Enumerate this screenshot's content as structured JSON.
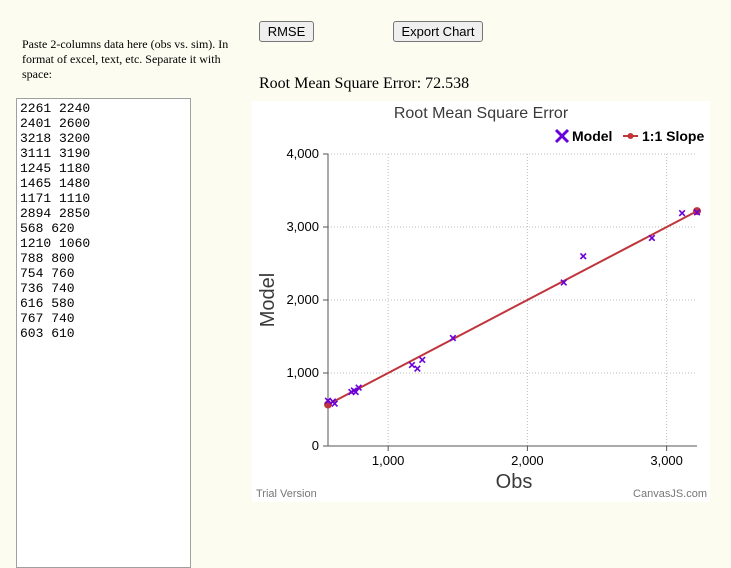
{
  "instructions": "Paste 2-columns data here (obs vs. sim). In format of excel, text, etc. Separate it with space:",
  "data_text": "2261 2240\n2401 2600\n3218 3200\n3111 3190\n1245 1180\n1465 1480\n1171 1110\n2894 2850\n568 620\n1210 1060\n788 800\n754 760\n736 740\n616 580\n767 740\n603 610",
  "buttons": {
    "rmse": "RMSE",
    "export": "Export Chart"
  },
  "result_text": "Root Mean Square Error: 72.538",
  "chart_data": {
    "type": "scatter",
    "title": "Root Mean Square Error",
    "xlabel": "Obs",
    "ylabel": "Model",
    "xlim": [
      568,
      3218
    ],
    "ylim": [
      0,
      4000
    ],
    "x_ticks": [
      1000,
      2000,
      3000
    ],
    "x_tick_labels": [
      "1,000",
      "2,000",
      "3,000"
    ],
    "y_ticks": [
      0,
      1000,
      2000,
      3000,
      4000
    ],
    "y_tick_labels": [
      "0",
      "1,000",
      "2,000",
      "3,000",
      "4,000"
    ],
    "grid": true,
    "legend_position": "top-right",
    "series": [
      {
        "name": "Model",
        "type": "scatter",
        "color": "#6a00d9",
        "marker": "cross",
        "points": [
          [
            2261,
            2240
          ],
          [
            2401,
            2600
          ],
          [
            3218,
            3200
          ],
          [
            3111,
            3190
          ],
          [
            1245,
            1180
          ],
          [
            1465,
            1480
          ],
          [
            1171,
            1110
          ],
          [
            2894,
            2850
          ],
          [
            568,
            620
          ],
          [
            1210,
            1060
          ],
          [
            788,
            800
          ],
          [
            754,
            760
          ],
          [
            736,
            740
          ],
          [
            616,
            580
          ],
          [
            767,
            740
          ],
          [
            603,
            610
          ]
        ]
      },
      {
        "name": "1:1 Slope",
        "type": "line",
        "color": "#c0353b",
        "marker": "circle",
        "points": [
          [
            568,
            568
          ],
          [
            3218,
            3218
          ]
        ]
      }
    ],
    "credits_left": "Trial Version",
    "credits_right": "CanvasJS.com"
  }
}
